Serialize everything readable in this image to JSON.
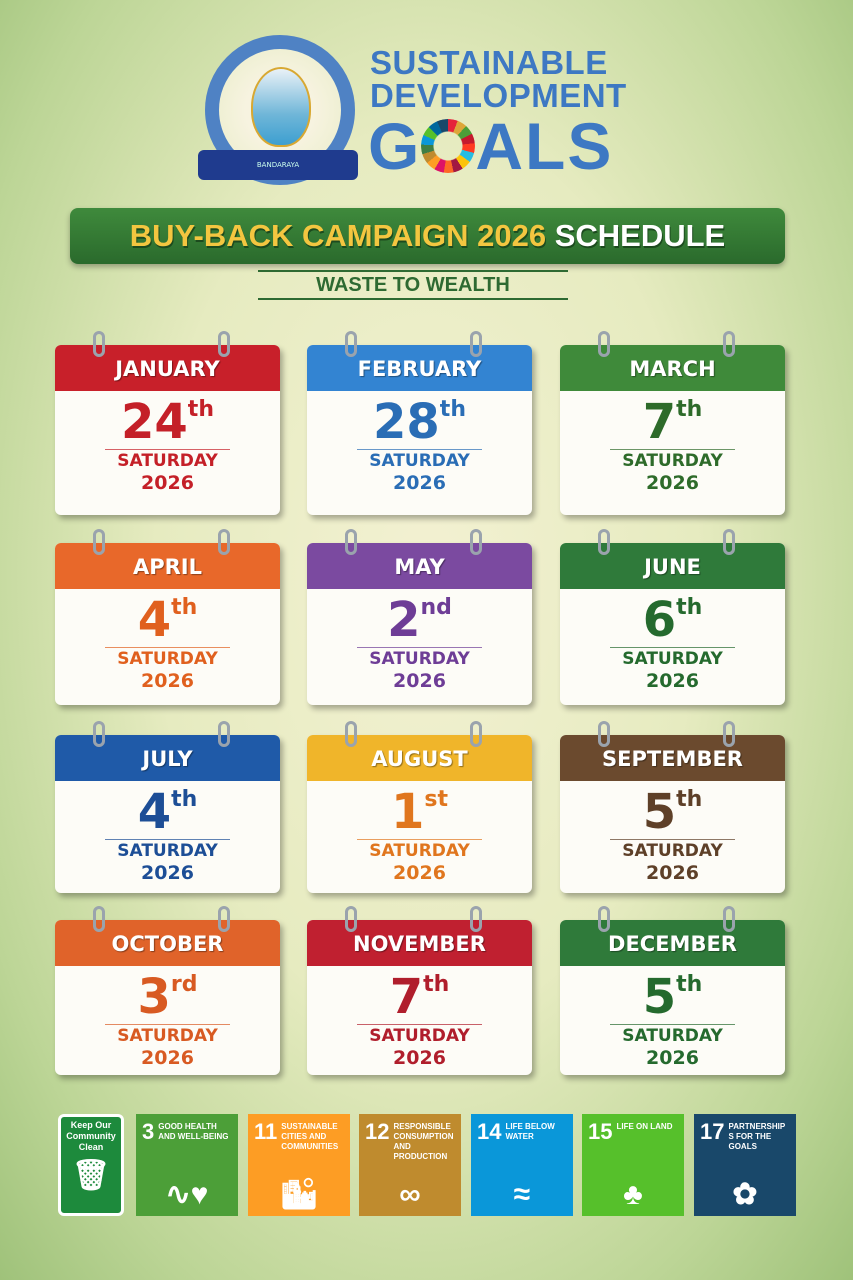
{
  "header": {
    "logo_text": "BANDARAYA",
    "sdg_line1": "SUSTAINABLE",
    "sdg_line2": "DEVELOPMENT",
    "sdg_goals_g": "G",
    "sdg_goals_rest": "ALS"
  },
  "banner": {
    "title_main": "BUY-BACK CAMPAIGN 2026",
    "title_end": "SCHEDULE",
    "tagline": "WASTE TO WEALTH"
  },
  "calendar": [
    {
      "month": "JANUARY",
      "day": "24",
      "suffix": "th",
      "weekday": "SATURDAY",
      "year": "2026",
      "color": "#c8202a",
      "text": "#c42028"
    },
    {
      "month": "FEBRUARY",
      "day": "28",
      "suffix": "th",
      "weekday": "SATURDAY",
      "year": "2026",
      "color": "#3384d2",
      "text": "#2a6db5"
    },
    {
      "month": "MARCH",
      "day": "7",
      "suffix": "th",
      "weekday": "SATURDAY",
      "year": "2026",
      "color": "#3f8a3a",
      "text": "#2e6b2a"
    },
    {
      "month": "APRIL",
      "day": "4",
      "suffix": "th",
      "weekday": "SATURDAY",
      "year": "2026",
      "color": "#e8682a",
      "text": "#e0601e"
    },
    {
      "month": "MAY",
      "day": "2",
      "suffix": "nd",
      "weekday": "SATURDAY",
      "year": "2026",
      "color": "#7b4aa0",
      "text": "#6e3d96"
    },
    {
      "month": "JUNE",
      "day": "6",
      "suffix": "th",
      "weekday": "SATURDAY",
      "year": "2026",
      "color": "#2f7a3a",
      "text": "#256a2e"
    },
    {
      "month": "JULY",
      "day": "4",
      "suffix": "th",
      "weekday": "SATURDAY",
      "year": "2026",
      "color": "#1f5aa8",
      "text": "#1d4e96"
    },
    {
      "month": "AUGUST",
      "day": "1",
      "suffix": "st",
      "weekday": "SATURDAY",
      "year": "2026",
      "color": "#f0b52a",
      "text": "#e0761e"
    },
    {
      "month": "SEPTEMBER",
      "day": "5",
      "suffix": "th",
      "weekday": "SATURDAY",
      "year": "2026",
      "color": "#6b4a2e",
      "text": "#5e4028"
    },
    {
      "month": "OCTOBER",
      "day": "3",
      "suffix": "rd",
      "weekday": "SATURDAY",
      "year": "2026",
      "color": "#e0632a",
      "text": "#d85a22"
    },
    {
      "month": "NOVEMBER",
      "day": "7",
      "suffix": "th",
      "weekday": "SATURDAY",
      "year": "2026",
      "color": "#c02030",
      "text": "#b01e2c"
    },
    {
      "month": "DECEMBER",
      "day": "5",
      "suffix": "th",
      "weekday": "SATURDAY",
      "year": "2026",
      "color": "#2f7a3a",
      "text": "#256a2e"
    }
  ],
  "footer": {
    "keep_clean": "Keep Our Community Clean",
    "tiles": [
      {
        "num": "3",
        "label": "GOOD HEALTH AND WELL-BEING",
        "color": "#4c9f38",
        "icon": "heartbeat-icon",
        "glyph": "∿♥"
      },
      {
        "num": "11",
        "label": "SUSTAINABLE CITIES AND COMMUNITIES",
        "color": "#fd9d24",
        "icon": "city-icon",
        "glyph": "🏙"
      },
      {
        "num": "12",
        "label": "RESPONSIBLE CONSUMPTION AND PRODUCTION",
        "color": "#bf8b2e",
        "icon": "infinity-icon",
        "glyph": "∞"
      },
      {
        "num": "14",
        "label": "LIFE BELOW WATER",
        "color": "#0a97d9",
        "icon": "fish-icon",
        "glyph": "≈"
      },
      {
        "num": "15",
        "label": "LIFE ON LAND",
        "color": "#56c02b",
        "icon": "tree-icon",
        "glyph": "♣"
      },
      {
        "num": "17",
        "label": "PARTNERSHIPS FOR THE GOALS",
        "color": "#19486a",
        "icon": "partnership-rings-icon",
        "glyph": "✿"
      }
    ]
  }
}
